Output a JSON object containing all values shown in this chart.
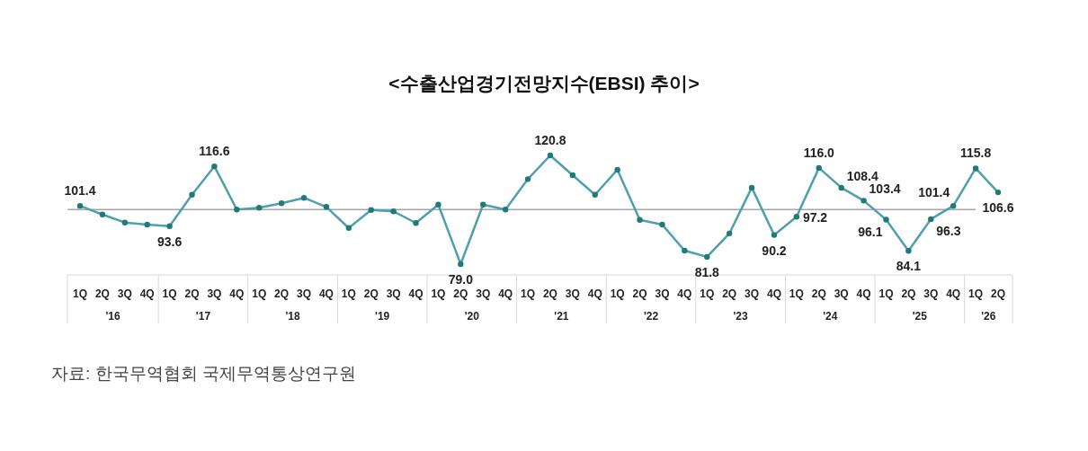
{
  "chart_data": {
    "type": "line",
    "title": "<수출산업경기전망지수(EBSI)  추이>",
    "categories": [
      "1Q",
      "2Q",
      "3Q",
      "4Q",
      "1Q",
      "2Q",
      "3Q",
      "4Q",
      "1Q",
      "2Q",
      "3Q",
      "4Q",
      "1Q",
      "2Q",
      "3Q",
      "4Q",
      "1Q",
      "2Q",
      "3Q",
      "4Q",
      "1Q",
      "2Q",
      "3Q",
      "4Q",
      "1Q",
      "2Q",
      "3Q",
      "4Q",
      "1Q",
      "2Q",
      "3Q",
      "4Q",
      "1Q",
      "2Q",
      "3Q",
      "4Q",
      "1Q",
      "2Q",
      "3Q",
      "4Q",
      "1Q",
      "2Q"
    ],
    "series": [
      {
        "color": "#4f9fae",
        "values": [
          101.4,
          98.1,
          95.0,
          94.2,
          93.6,
          105.7,
          116.6,
          100.0,
          100.7,
          102.4,
          104.5,
          101.0,
          92.9,
          99.8,
          99.3,
          94.8,
          101.9,
          79.0,
          101.9,
          100.0,
          111.7,
          120.8,
          113.2,
          105.7,
          115.3,
          96.0,
          94.2,
          84.2,
          81.8,
          90.8,
          108.4,
          90.2,
          97.2,
          116.0,
          108.4,
          103.4,
          96.1,
          84.1,
          96.3,
          101.4,
          115.8,
          106.6
        ],
        "value_labels": [
          "101.4",
          null,
          null,
          null,
          "93.6",
          null,
          "116.6",
          null,
          null,
          null,
          null,
          null,
          null,
          null,
          null,
          null,
          null,
          "79.0",
          null,
          null,
          null,
          "120.8",
          null,
          null,
          null,
          null,
          null,
          null,
          "81.8",
          null,
          null,
          "90.2",
          "97.2",
          "116.0",
          "108.4",
          "103.4",
          "96.1",
          "84.1",
          "96.3",
          "101.4",
          "115.8",
          "106.6"
        ]
      }
    ],
    "marker": "circle",
    "line_style": "solid",
    "tick_labels": "x",
    "ref_lines": [
      {
        "axis": "y",
        "value": 100,
        "color": "#a6a6a6"
      }
    ],
    "annotations": [
      "'16",
      "'17",
      "'18",
      "'19",
      "'20",
      "'21",
      "'22",
      "'23",
      "'24",
      "'25",
      "'26",
      "자료:  한국무역협회  국제무역통상연구원"
    ]
  }
}
